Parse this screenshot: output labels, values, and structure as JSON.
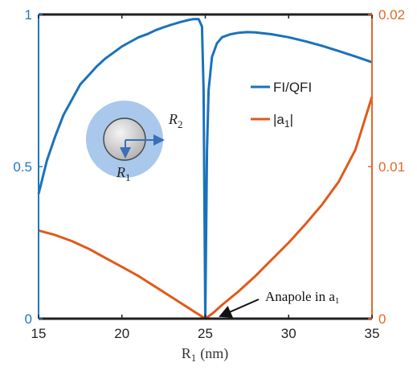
{
  "colors": {
    "left_axis": "#1f77c4",
    "right_axis": "#e06a2a",
    "fi_series": "#1a72bb",
    "a1_series": "#e05a1c",
    "axis_box": "#1f1f1f",
    "inset_shell": "#a9c8ec",
    "inset_core": "#c8c8c8"
  },
  "chart_data": {
    "type": "line",
    "xlabel": "R",
    "xlabel_sub": "1",
    "xlabel_unit": "(nm)",
    "xlim": [
      15,
      35
    ],
    "xticks": [
      "15",
      "20",
      "25",
      "30",
      "35"
    ],
    "y_left": {
      "lim": [
        0,
        1
      ],
      "ticks": [
        "0",
        "0.5",
        "1"
      ]
    },
    "y_right": {
      "lim": [
        0,
        0.02
      ],
      "ticks": [
        "0",
        "0.01",
        "0.02"
      ]
    },
    "legend": {
      "placement": "upper-right",
      "entries": [
        {
          "name": "FI/QFI",
          "color": "#1a72bb",
          "axis": "left"
        },
        {
          "name_prefix": "|a",
          "name_sub": "1",
          "name_suffix": "|",
          "color": "#e05a1c",
          "axis": "right"
        }
      ]
    },
    "series": [
      {
        "name": "FI/QFI",
        "axis": "left",
        "x": [
          15,
          15.5,
          16,
          16.5,
          17,
          17.5,
          18,
          18.5,
          19,
          19.5,
          20,
          20.5,
          21,
          21.5,
          22,
          22.5,
          23,
          23.5,
          24,
          24.3,
          24.6,
          24.8,
          24.9,
          25.0,
          25.1,
          25.2,
          25.4,
          25.7,
          26,
          26.5,
          27,
          27.5,
          28,
          29,
          30,
          31,
          32,
          33,
          34,
          35
        ],
        "y": [
          0.41,
          0.52,
          0.6,
          0.67,
          0.72,
          0.77,
          0.8,
          0.83,
          0.855,
          0.875,
          0.895,
          0.91,
          0.925,
          0.935,
          0.948,
          0.958,
          0.967,
          0.975,
          0.982,
          0.985,
          0.985,
          0.96,
          0.75,
          0.0,
          0.55,
          0.75,
          0.86,
          0.905,
          0.925,
          0.935,
          0.94,
          0.942,
          0.941,
          0.935,
          0.925,
          0.912,
          0.897,
          0.88,
          0.862,
          0.843
        ]
      },
      {
        "name": "|a1|",
        "axis": "right",
        "x": [
          15,
          16,
          17,
          18,
          19,
          20,
          21,
          22,
          23,
          24,
          24.5,
          25,
          25.5,
          26,
          27,
          28,
          29,
          30,
          31,
          32,
          33,
          34,
          35
        ],
        "y": [
          0.0058,
          0.0055,
          0.0051,
          0.0046,
          0.004,
          0.0034,
          0.0028,
          0.0021,
          0.0014,
          0.0007,
          0.00035,
          0.0,
          0.0004,
          0.0009,
          0.0018,
          0.0028,
          0.0039,
          0.005,
          0.0062,
          0.0075,
          0.009,
          0.0111,
          0.0146
        ]
      }
    ],
    "annotation": {
      "text_main": "Anapole in a",
      "text_sub": "1",
      "x": 25,
      "y_left": 0
    },
    "inset": {
      "label_inner": "R",
      "label_inner_sub": "1",
      "label_outer": "R",
      "label_outer_sub": "2"
    }
  }
}
